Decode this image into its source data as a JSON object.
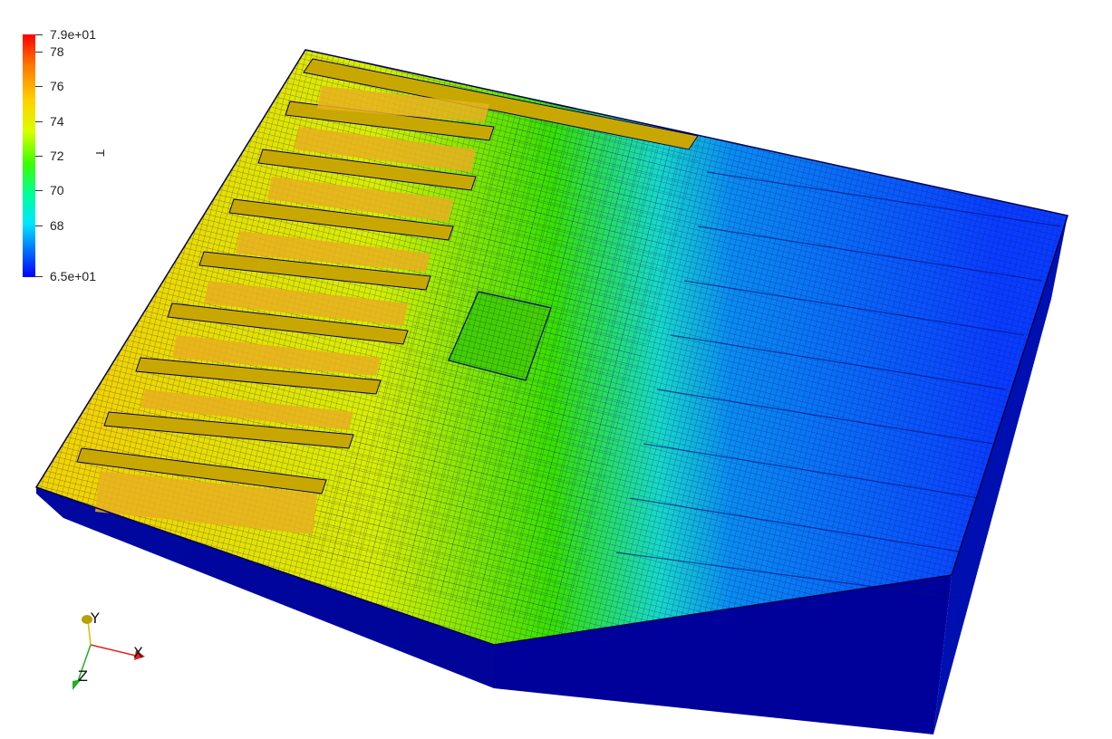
{
  "colorbar": {
    "title": "T",
    "max_label": "7.9e+01",
    "min_label": "6.5e+01",
    "min": 65,
    "max": 79,
    "ticks": [
      "78",
      "76",
      "74",
      "72",
      "70",
      "68"
    ],
    "tick_values": [
      78,
      76,
      74,
      72,
      70,
      68
    ],
    "colormap": [
      "#0000ff",
      "#00c8ff",
      "#00ff80",
      "#40ff00",
      "#e0ff00",
      "#ffc000",
      "#ff0000"
    ]
  },
  "orientation_axes": {
    "x_label": "X",
    "y_label": "Y",
    "z_label": "Z",
    "x_color": "#e02020",
    "y_color": "#d8c000",
    "z_color": "#20b020"
  },
  "scene": {
    "mesh_line_color": "#000050",
    "side_color": "#00008a"
  }
}
